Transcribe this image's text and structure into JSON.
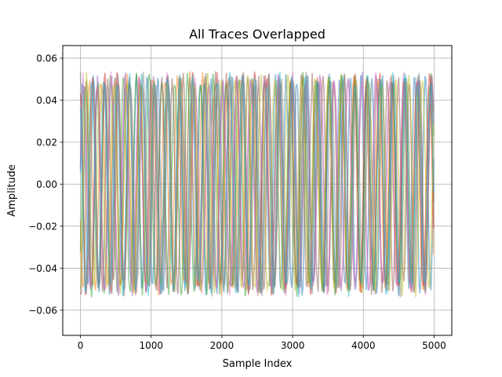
{
  "chart_data": {
    "type": "line",
    "title": "All Traces Overlapped",
    "xlabel": "Sample Index",
    "ylabel": "Amplitude",
    "xlim": [
      -250,
      5250
    ],
    "ylim": [
      -0.072,
      0.066
    ],
    "xticks": [
      0,
      1000,
      2000,
      3000,
      4000,
      5000
    ],
    "xtick_labels": [
      "0",
      "1000",
      "2000",
      "3000",
      "4000",
      "5000"
    ],
    "yticks": [
      -0.06,
      -0.04,
      -0.02,
      0.0,
      0.02,
      0.04,
      0.06
    ],
    "ytick_labels": [
      "−0.06",
      "−0.04",
      "−0.02",
      "0.00",
      "0.02",
      "0.04",
      "0.06"
    ],
    "grid": true,
    "legend": "none",
    "series_count": 10,
    "samples_per_trace": 5001,
    "amplitude": 0.05,
    "peak_range": [
      -0.065,
      0.06
    ],
    "series_colors": [
      "#1f77b4",
      "#ff7f0e",
      "#2ca02c",
      "#d62728",
      "#9467bd",
      "#8c564b",
      "#e377c2",
      "#7f7f7f",
      "#bcbd22",
      "#17becf"
    ],
    "series_alpha": 0.5
  }
}
